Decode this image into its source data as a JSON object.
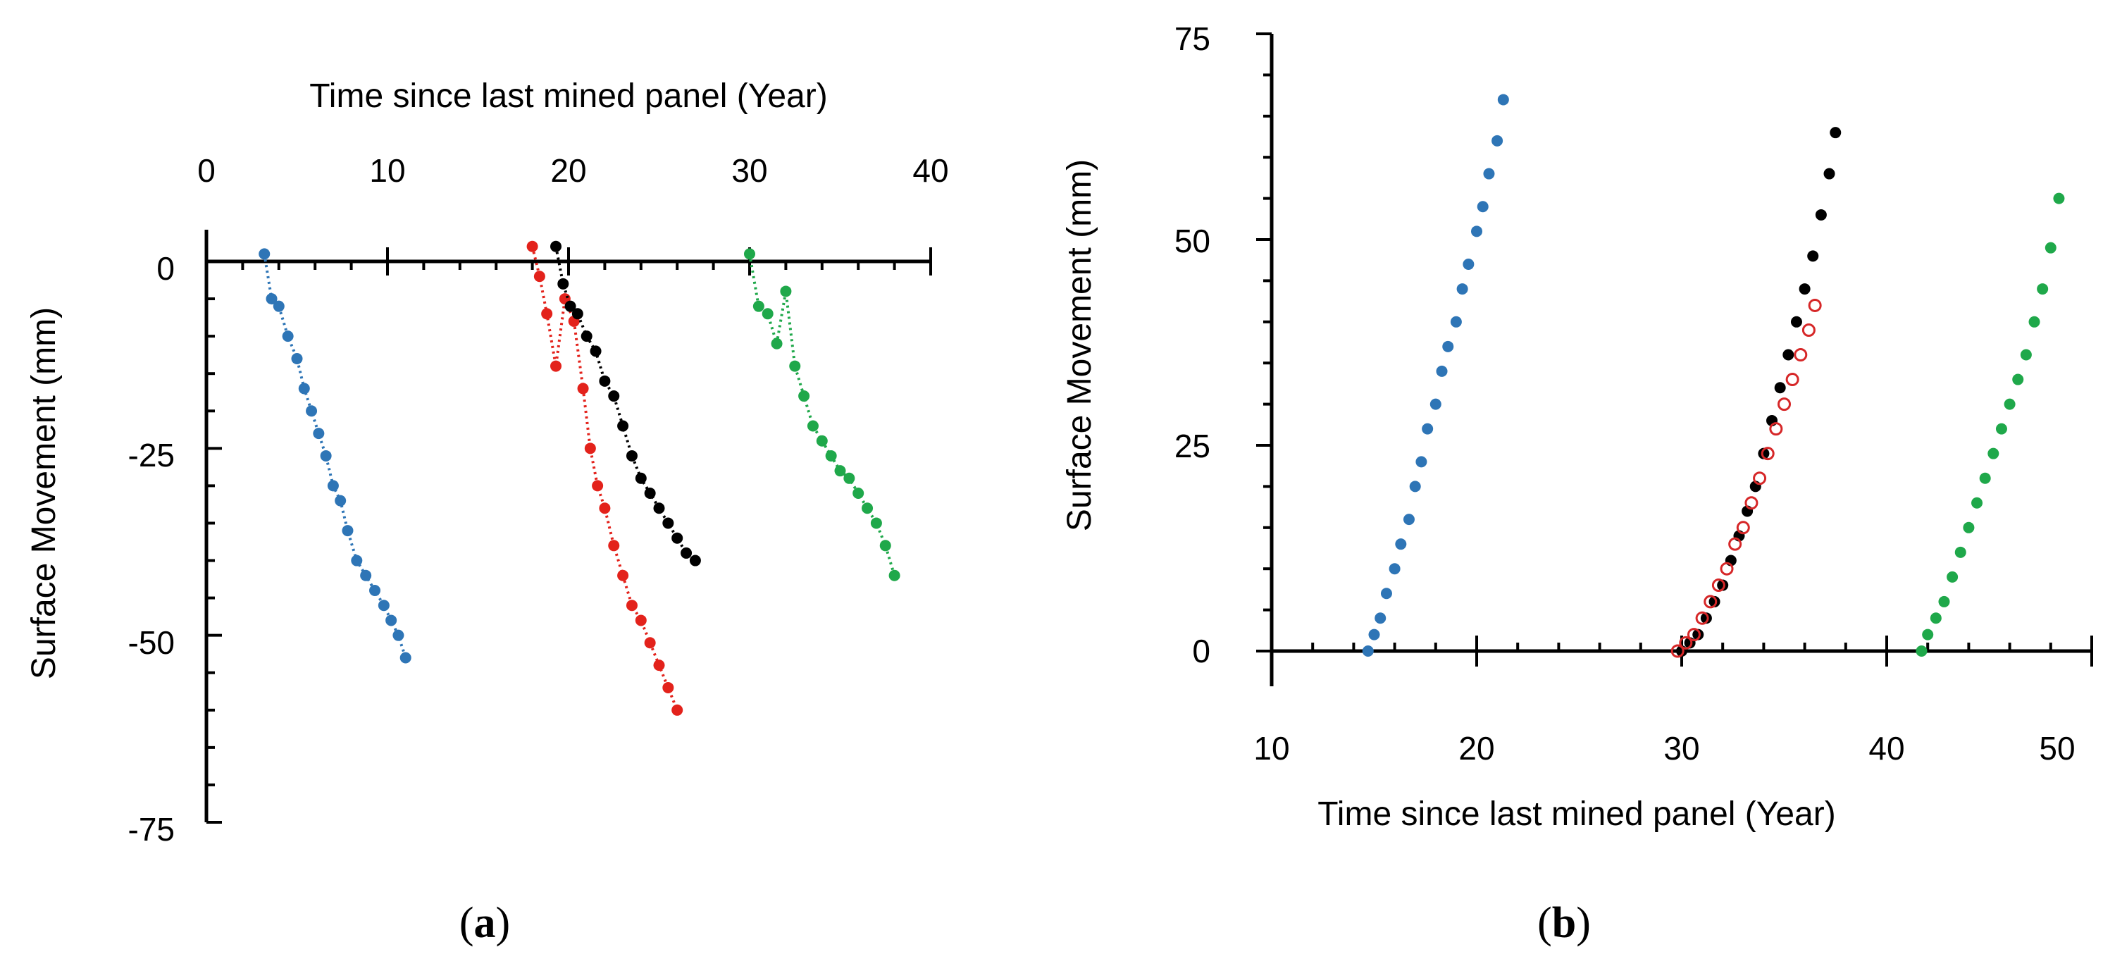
{
  "chart_data": [
    {
      "id": "a",
      "type": "line",
      "panel_label_open": "(",
      "panel_label_letter": "a",
      "panel_label_close": ")",
      "xlabel": "Time since last mined panel (Year)",
      "ylabel": "Surface  Movement  (mm)",
      "xlim": [
        0,
        40
      ],
      "ylim": [
        -75,
        0
      ],
      "xticks": [
        "0",
        "10",
        "20",
        "30",
        "40"
      ],
      "yticks": [
        "0",
        "-25",
        "-50",
        "-75"
      ],
      "xaxis_position": "top",
      "line_style": "dotted",
      "series": [
        {
          "name": "blue",
          "color": "#2E75B6",
          "x": [
            3.2,
            3.6,
            4.0,
            4.5,
            5.0,
            5.4,
            5.8,
            6.2,
            6.6,
            7.0,
            7.4,
            7.8,
            8.3,
            8.8,
            9.3,
            9.8,
            10.2,
            10.6,
            11.0
          ],
          "y": [
            1,
            -5,
            -6,
            -10,
            -13,
            -17,
            -20,
            -23,
            -26,
            -30,
            -32,
            -36,
            -40,
            -42,
            -44,
            -46,
            -48,
            -50,
            -53
          ]
        },
        {
          "name": "red",
          "color": "#E3221B",
          "x": [
            18.0,
            18.4,
            18.8,
            19.3,
            19.8,
            20.3,
            20.8,
            21.2,
            21.6,
            22.0,
            22.5,
            23.0,
            23.5,
            24.0,
            24.5,
            25.0,
            25.5,
            26.0
          ],
          "y": [
            2,
            -2,
            -7,
            -14,
            -5,
            -8,
            -17,
            -25,
            -30,
            -33,
            -38,
            -42,
            -46,
            -48,
            -51,
            -54,
            -57,
            -60
          ]
        },
        {
          "name": "black",
          "color": "#000000",
          "x": [
            19.3,
            19.7,
            20.1,
            20.5,
            21.0,
            21.5,
            22.0,
            22.5,
            23.0,
            23.5,
            24.0,
            24.5,
            25.0,
            25.5,
            26.0,
            26.5,
            27.0
          ],
          "y": [
            2,
            -3,
            -6,
            -7,
            -10,
            -12,
            -16,
            -18,
            -22,
            -26,
            -29,
            -31,
            -33,
            -35,
            -37,
            -39,
            -40
          ]
        },
        {
          "name": "green",
          "color": "#1FA84A",
          "x": [
            30.0,
            30.5,
            31.0,
            31.5,
            32.0,
            32.5,
            33.0,
            33.5,
            34.0,
            34.5,
            35.0,
            35.5,
            36.0,
            36.5,
            37.0,
            37.5,
            38.0
          ],
          "y": [
            1,
            -6,
            -7,
            -11,
            -4,
            -14,
            -18,
            -22,
            -24,
            -26,
            -28,
            -29,
            -31,
            -33,
            -35,
            -38,
            -42
          ]
        }
      ]
    },
    {
      "id": "b",
      "type": "scatter",
      "panel_label_open": "(",
      "panel_label_letter": "b",
      "panel_label_close": ")",
      "xlabel": "Time since last mined panel (Year)",
      "ylabel": "Surface  Movement  (mm)",
      "xlim": [
        10,
        50
      ],
      "ylim": [
        0,
        75
      ],
      "xticks": [
        "10",
        "20",
        "30",
        "40",
        "50"
      ],
      "yticks": [
        "0",
        "25",
        "50",
        "75"
      ],
      "xaxis_position": "bottom",
      "series": [
        {
          "name": "blue",
          "color": "#2E75B6",
          "marker": "filled",
          "x": [
            14.7,
            15.0,
            15.3,
            15.6,
            16.0,
            16.3,
            16.7,
            17.0,
            17.3,
            17.6,
            18.0,
            18.3,
            18.6,
            19.0,
            19.3,
            19.6,
            20.0,
            20.3,
            20.6,
            21.0,
            21.3
          ],
          "y": [
            0,
            2,
            4,
            7,
            10,
            13,
            16,
            20,
            23,
            27,
            30,
            34,
            37,
            40,
            44,
            47,
            51,
            54,
            58,
            62,
            67
          ]
        },
        {
          "name": "black",
          "color": "#000000",
          "marker": "filled",
          "x": [
            30.0,
            30.4,
            30.8,
            31.2,
            31.6,
            32.0,
            32.4,
            32.8,
            33.2,
            33.6,
            34.0,
            34.4,
            34.8,
            35.2,
            35.6,
            36.0,
            36.4,
            36.8,
            37.2,
            37.5
          ],
          "y": [
            0,
            1,
            2,
            4,
            6,
            8,
            11,
            14,
            17,
            20,
            24,
            28,
            32,
            36,
            40,
            44,
            48,
            53,
            58,
            63
          ]
        },
        {
          "name": "red",
          "color": "#D62728",
          "marker": "open",
          "x": [
            29.8,
            30.2,
            30.6,
            31.0,
            31.4,
            31.8,
            32.2,
            32.6,
            33.0,
            33.4,
            33.8,
            34.2,
            34.6,
            35.0,
            35.4,
            35.8,
            36.2,
            36.5
          ],
          "y": [
            0,
            1,
            2,
            4,
            6,
            8,
            10,
            13,
            15,
            18,
            21,
            24,
            27,
            30,
            33,
            36,
            39,
            42
          ]
        },
        {
          "name": "green",
          "color": "#1FA84A",
          "marker": "filled",
          "x": [
            41.7,
            42.0,
            42.4,
            42.8,
            43.2,
            43.6,
            44.0,
            44.4,
            44.8,
            45.2,
            45.6,
            46.0,
            46.4,
            46.8,
            47.2,
            47.6,
            48.0,
            48.4
          ],
          "y": [
            0,
            2,
            4,
            6,
            9,
            12,
            15,
            18,
            21,
            24,
            27,
            30,
            33,
            36,
            40,
            44,
            49,
            55
          ]
        }
      ]
    }
  ]
}
